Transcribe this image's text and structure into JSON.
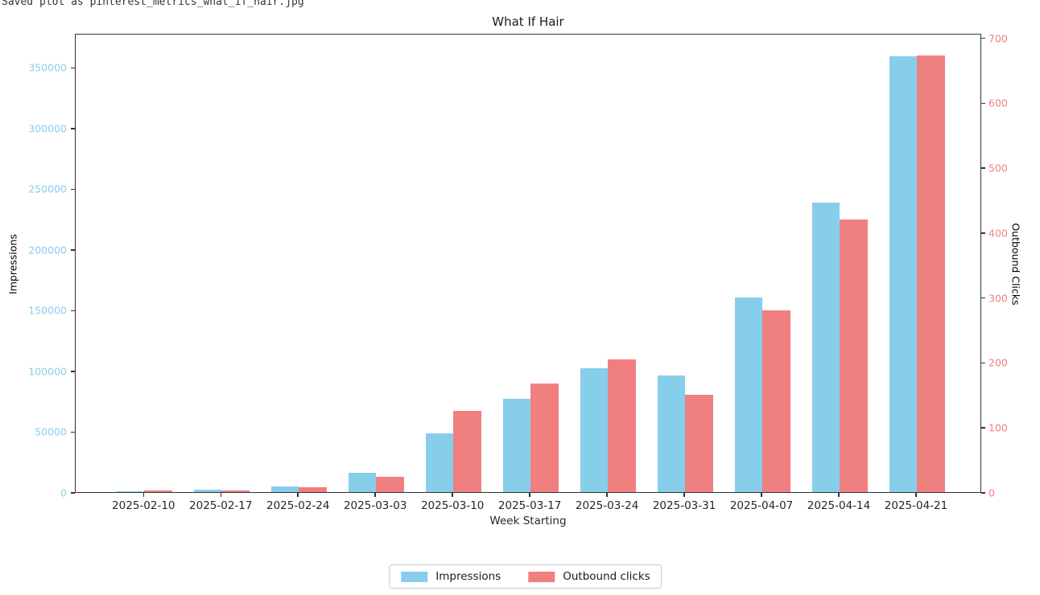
{
  "terminal_text": "Saved plot as pinterest_metrics_what_if_hair.jpg",
  "chart_data": {
    "type": "bar",
    "title": "What If Hair",
    "xlabel": "Week Starting",
    "grid": false,
    "categories": [
      "2025-02-10",
      "2025-02-17",
      "2025-02-24",
      "2025-03-03",
      "2025-03-10",
      "2025-03-17",
      "2025-03-24",
      "2025-03-31",
      "2025-04-07",
      "2025-04-14",
      "2025-04-21"
    ],
    "series": [
      {
        "name": "Impressions",
        "axis": "left",
        "color": "#87CEEB",
        "values": [
          1000,
          1800,
          4400,
          16000,
          48500,
          77000,
          102000,
          96000,
          160500,
          238500,
          359000
        ]
      },
      {
        "name": "Outbound clicks",
        "axis": "right",
        "color": "#F08080",
        "values": [
          2,
          3,
          8,
          23,
          125,
          167,
          204,
          150,
          280,
          420,
          672
        ]
      }
    ],
    "left_axis": {
      "label": "Impressions",
      "color": "#87CEEB",
      "ticks": [
        0,
        50000,
        100000,
        150000,
        200000,
        250000,
        300000,
        350000
      ],
      "ylim": [
        0,
        378000
      ]
    },
    "right_axis": {
      "label": "Outbound Clicks",
      "color": "#F08080",
      "ticks": [
        0,
        100,
        200,
        300,
        400,
        500,
        600,
        700
      ],
      "ylim": [
        0,
        707
      ]
    },
    "legend": {
      "position": "bottom-center",
      "entries": [
        "Impressions",
        "Outbound clicks"
      ]
    }
  }
}
